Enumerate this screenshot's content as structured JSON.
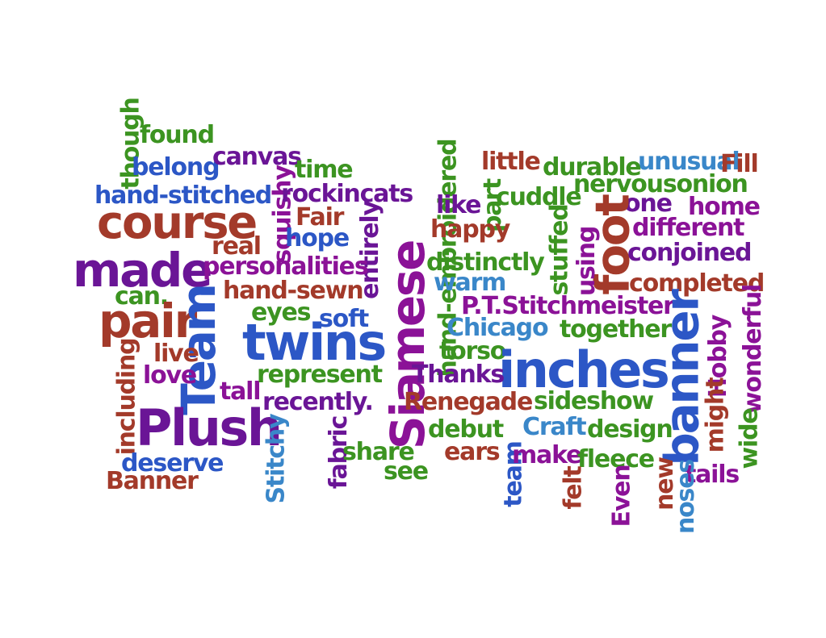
{
  "colors": {
    "red": "#a33a2a",
    "green": "#3c9421",
    "blue": "#2c57c6",
    "purple": "#6a1596",
    "magenta": "#8b1297",
    "lightblue": "#3a87c9"
  },
  "words": {
    "though": "though",
    "found": "found",
    "belong": "belong",
    "canvas": "canvas",
    "time": "time",
    "hand_stitched": "hand-stitched",
    "squishy": "squishy",
    "rockincats": "rockincats",
    "course": "course",
    "fair": "Fair",
    "real": "real",
    "hope": "hope",
    "entirely": "entirely",
    "made": "made",
    "personalities": "personalities",
    "can": "can.",
    "hand_sewn": "hand-sewn",
    "pair": "pair",
    "team_big": "Team",
    "eyes": "eyes",
    "soft": "soft",
    "twins": "twins",
    "siamese": "Siamese",
    "including": "including",
    "live": "live",
    "love": "love",
    "tall": "tall",
    "represent": "represent",
    "recently": "recently.",
    "plush": "Plush",
    "stitchy": "Stitchy",
    "fabric": "fabric",
    "share": "share",
    "see": "see",
    "deserve": "deserve",
    "banner_small": "Banner",
    "hand_embroidered": "hand-embroidered",
    "little": "little",
    "durable": "durable",
    "unusual": "unusual",
    "fill": "Fill",
    "like": "like",
    "part": "part",
    "cuddle": "cuddle",
    "nervousonion": "nervousonion",
    "one": "one",
    "home": "home",
    "happy": "happy",
    "stuffed": "stuffed",
    "foot": "foot",
    "different": "different",
    "using": "using",
    "distinctly": "distinctly",
    "conjoined": "conjoined",
    "warm": "warm",
    "completed": "completed",
    "pt_stitchmeister": "P.T.Stitchmeister",
    "chicago": "Chicago",
    "together": "together",
    "hobby": "Hobby",
    "wonderful": "wonderful",
    "torso": "torso",
    "inches": "inches",
    "thanks": "Thanks",
    "renegade": "Renegade",
    "sideshow": "sideshow",
    "might": "might",
    "banner_big": "banner",
    "wide": "wide",
    "debut": "debut",
    "craft": "Craft",
    "design": "design",
    "ears": "ears",
    "team_small": "team",
    "make": "make",
    "fleece": "fleece",
    "tails": "tails",
    "felt": "felt",
    "even": "Even",
    "new": "new",
    "noses": "noses"
  }
}
